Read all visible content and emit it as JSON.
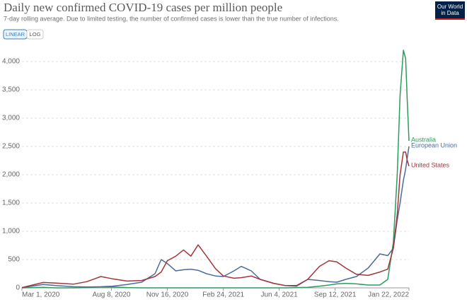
{
  "chart_data": {
    "type": "line",
    "title": "Daily new confirmed COVID-19 cases per million people",
    "subtitle": "7-day rolling average. Due to limited testing, the number of confirmed cases is lower than the true number of infections.",
    "controls": [
      "LINEAR",
      "LOG"
    ],
    "logo": [
      "Our World",
      "in Data"
    ],
    "x": [
      "2020-03-01",
      "2020-04-08",
      "2020-05-01",
      "2020-06-01",
      "2020-06-25",
      "2020-07-20",
      "2020-08-10",
      "2020-09-05",
      "2020-10-01",
      "2020-10-25",
      "2020-11-05",
      "2020-11-16",
      "2020-12-01",
      "2020-12-15",
      "2020-12-28",
      "2021-01-10",
      "2021-01-25",
      "2021-02-10",
      "2021-02-24",
      "2021-03-15",
      "2021-03-28",
      "2021-04-15",
      "2021-05-01",
      "2021-05-25",
      "2021-06-15",
      "2021-07-05",
      "2021-07-25",
      "2021-08-15",
      "2021-09-01",
      "2021-09-15",
      "2021-10-01",
      "2021-10-20",
      "2021-11-10",
      "2021-12-01",
      "2021-12-15",
      "2021-12-25",
      "2022-01-01",
      "2022-01-06",
      "2022-01-12",
      "2022-01-16",
      "2022-01-19",
      "2022-01-22"
    ],
    "series": [
      {
        "name": "Australia",
        "color": "#2a9d5c",
        "values": [
          0,
          10,
          0,
          0,
          5,
          15,
          15,
          5,
          0,
          0,
          0,
          0,
          0,
          0,
          0,
          0,
          0,
          0,
          0,
          0,
          0,
          0,
          0,
          0,
          0,
          5,
          10,
          30,
          50,
          70,
          80,
          70,
          50,
          50,
          150,
          800,
          2000,
          3400,
          4200,
          4050,
          3300,
          2600
        ]
      },
      {
        "name": "European Union",
        "color": "#4c6a9c",
        "values": [
          5,
          60,
          40,
          20,
          15,
          20,
          30,
          60,
          100,
          250,
          500,
          430,
          300,
          320,
          330,
          310,
          250,
          210,
          200,
          300,
          380,
          300,
          150,
          80,
          40,
          30,
          150,
          130,
          110,
          100,
          150,
          200,
          350,
          600,
          570,
          700,
          1200,
          1500,
          1900,
          2100,
          2300,
          2500
        ]
      },
      {
        "name": "United States",
        "color": "#a2363b",
        "values": [
          5,
          95,
          85,
          65,
          110,
          200,
          160,
          120,
          130,
          200,
          280,
          480,
          560,
          670,
          560,
          760,
          560,
          340,
          210,
          170,
          180,
          210,
          150,
          80,
          40,
          40,
          150,
          380,
          480,
          460,
          350,
          240,
          220,
          280,
          330,
          700,
          1300,
          2000,
          2400,
          2400,
          2250,
          2150
        ]
      }
    ],
    "xlim": [
      "2020-03-01",
      "2022-01-22"
    ],
    "xticks": [
      {
        "value": "2020-03-01",
        "label": "Mar 1, 2020"
      },
      {
        "value": "2020-08-08",
        "label": "Aug 8, 2020"
      },
      {
        "value": "2020-11-16",
        "label": "Nov 16, 2020"
      },
      {
        "value": "2021-02-24",
        "label": "Feb 24, 2021"
      },
      {
        "value": "2021-06-04",
        "label": "Jun 4, 2021"
      },
      {
        "value": "2021-09-12",
        "label": "Sep 12, 2021"
      },
      {
        "value": "2022-01-22",
        "label": "Jan 22, 2022"
      }
    ],
    "ylim": [
      0,
      4250
    ],
    "yticks": [
      0,
      500,
      {
        "value": 1000,
        "label": "1,000"
      },
      {
        "value": 1500,
        "label": "1,500"
      },
      {
        "value": 2000,
        "label": "2,000"
      },
      {
        "value": 2500,
        "label": "2,500"
      },
      {
        "value": 3000,
        "label": "3,000"
      },
      {
        "value": 3500,
        "label": "3,500"
      },
      {
        "value": 4000,
        "label": "4,000"
      }
    ],
    "grid": true
  }
}
